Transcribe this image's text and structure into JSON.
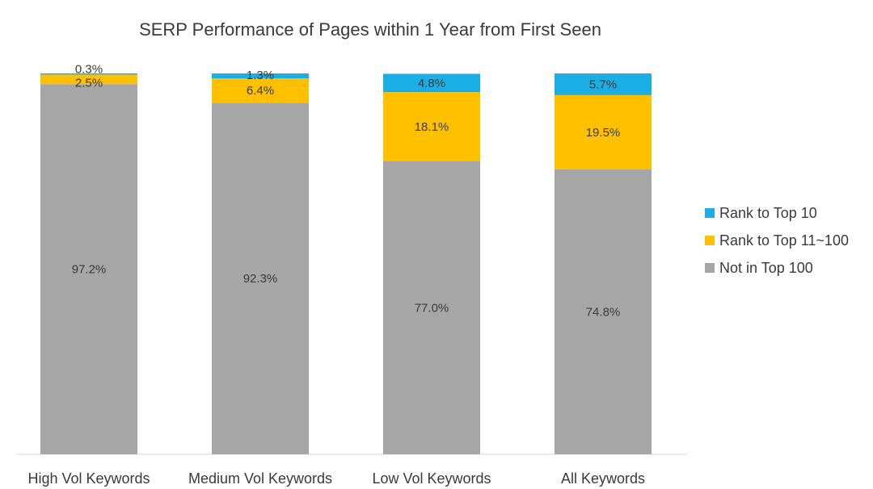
{
  "chart_data": {
    "type": "bar",
    "stacked": true,
    "percent_stacked": true,
    "title": "SERP Performance of Pages within 1 Year from First Seen",
    "xlabel": "",
    "ylabel": "",
    "ylim": [
      0,
      100
    ],
    "grid": false,
    "legend": "right",
    "categories": [
      "High Vol Keywords",
      "Medium Vol Keywords",
      "Low Vol Keywords",
      "All Keywords"
    ],
    "series": [
      {
        "name": "Not in Top 100",
        "color": "#a6a6a6",
        "values": [
          97.2,
          92.3,
          77.0,
          74.8
        ],
        "labels": [
          "97.2%",
          "92.3%",
          "77.0%",
          "74.8%"
        ]
      },
      {
        "name": "Rank to Top 11~100",
        "color": "#ffc000",
        "values": [
          2.5,
          6.4,
          18.1,
          19.5
        ],
        "labels": [
          "2.5%",
          "6.4%",
          "18.1%",
          "19.5%"
        ]
      },
      {
        "name": "Rank to Top 10",
        "color": "#1aaee5",
        "values": [
          0.3,
          1.3,
          4.8,
          5.7
        ],
        "labels": [
          "0.3%",
          "1.3%",
          "4.8%",
          "5.7%"
        ]
      }
    ],
    "legend_order": [
      "Rank to Top 10",
      "Rank to Top 11~100",
      "Not in Top 100"
    ]
  }
}
